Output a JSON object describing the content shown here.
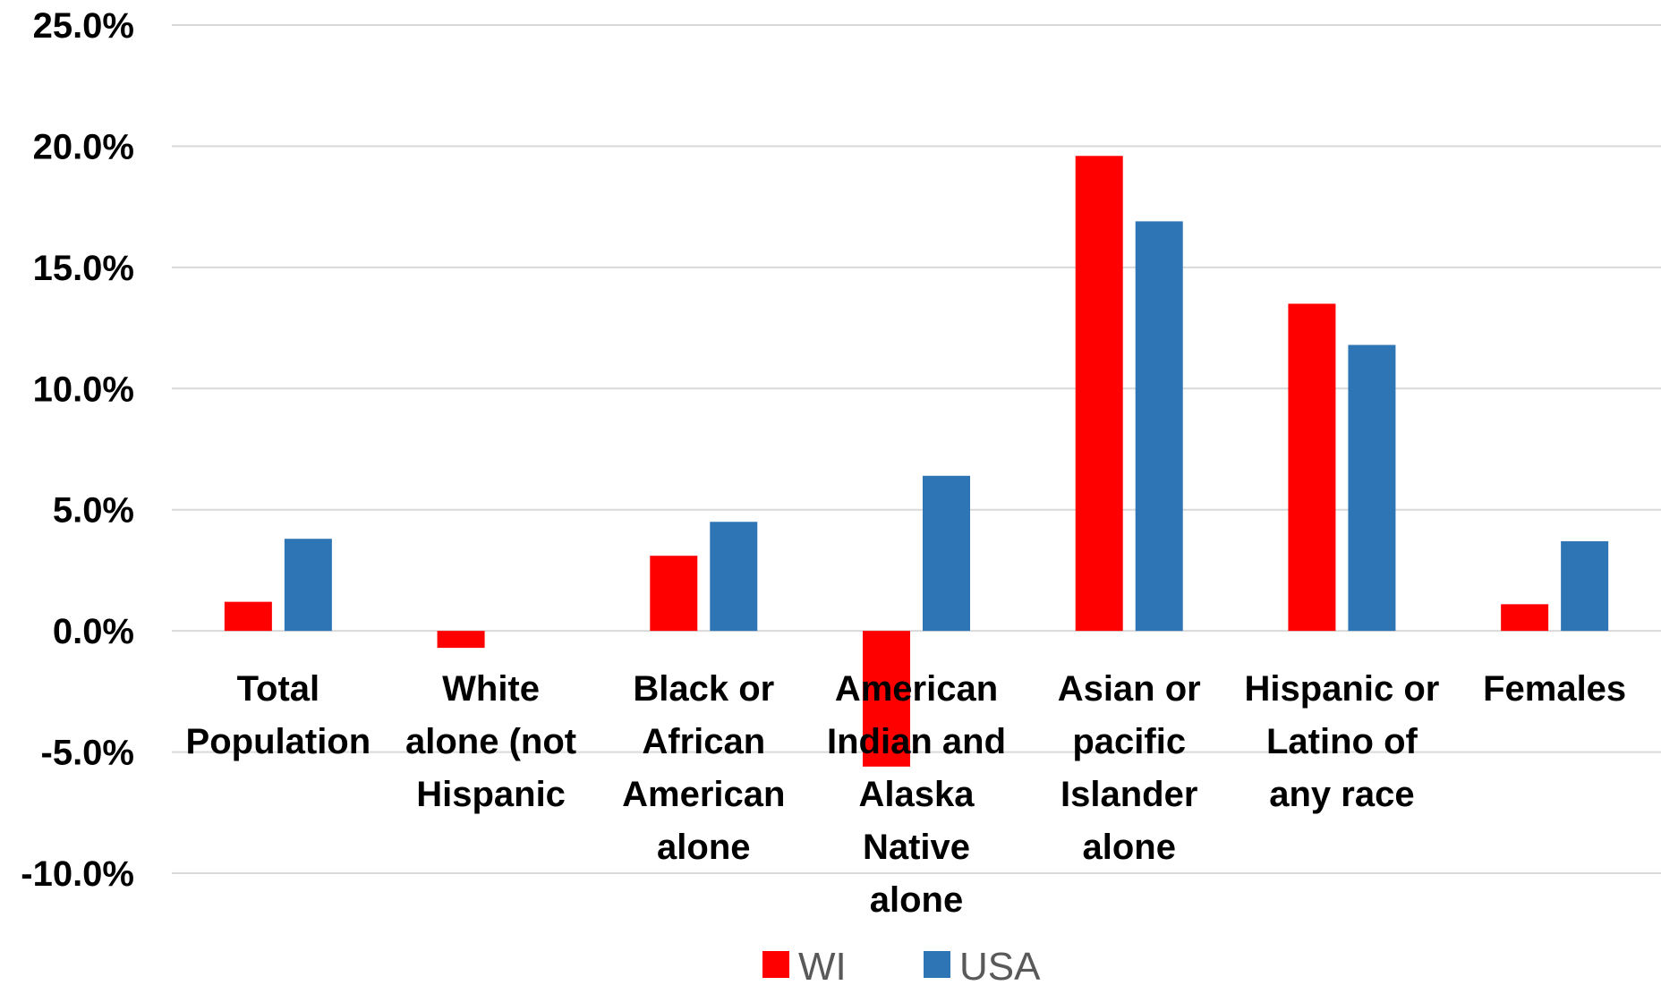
{
  "chart_data": {
    "type": "bar",
    "title": "",
    "xlabel": "",
    "ylabel": "",
    "categories": [
      [
        "Total",
        "Population"
      ],
      [
        "White",
        "alone (not",
        "Hispanic"
      ],
      [
        "Black or",
        "African",
        "American",
        "alone"
      ],
      [
        "American",
        "Indian and",
        "Alaska",
        "Native",
        "alone"
      ],
      [
        "Asian or",
        "pacific",
        "Islander",
        "alone"
      ],
      [
        "Hispanic or",
        "Latino of",
        "any race"
      ],
      [
        "Females"
      ]
    ],
    "series": [
      {
        "name": "WI",
        "color": "#ff0000",
        "values": [
          1.2,
          -0.7,
          3.1,
          -5.6,
          19.6,
          13.5,
          1.1
        ]
      },
      {
        "name": "USA",
        "color": "#2e75b6",
        "values": [
          3.8,
          0.0,
          4.5,
          6.4,
          16.9,
          11.8,
          3.7
        ]
      }
    ],
    "ylim": [
      -10,
      25
    ],
    "yticks": [
      25,
      20,
      15,
      10,
      5,
      0,
      -5,
      -10
    ],
    "ytick_labels": [
      "25.0%",
      "20.0%",
      "15.0%",
      "10.0%",
      "5.0%",
      "0.0%",
      "-5.0%",
      "-10.0%"
    ],
    "grid": true,
    "legend": {
      "position": "bottom",
      "entries": [
        "WI",
        "USA"
      ]
    }
  }
}
